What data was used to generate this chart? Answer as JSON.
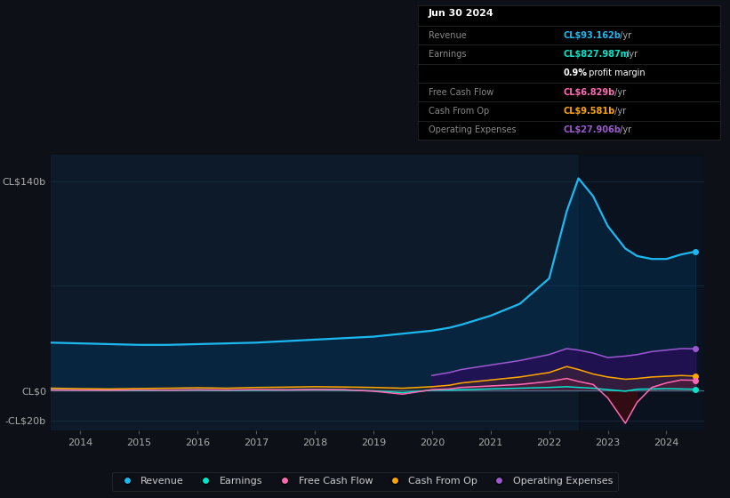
{
  "bg_color": "#0d1117",
  "plot_bg_color": "#0d1a2a",
  "title_date": "Jun 30 2024",
  "years": [
    2013.5,
    2014.0,
    2014.5,
    2015.0,
    2015.5,
    2016.0,
    2016.5,
    2017.0,
    2017.5,
    2018.0,
    2018.5,
    2019.0,
    2019.5,
    2020.0,
    2020.3,
    2020.5,
    2021.0,
    2021.5,
    2022.0,
    2022.3,
    2022.5,
    2022.75,
    2023.0,
    2023.3,
    2023.5,
    2023.75,
    2024.0,
    2024.25,
    2024.5
  ],
  "revenue": [
    32,
    31.5,
    31,
    30.5,
    30.5,
    31,
    31.5,
    32,
    33,
    34,
    35,
    36,
    38,
    40,
    42,
    44,
    50,
    58,
    75,
    120,
    142,
    130,
    110,
    95,
    90,
    88,
    88,
    91,
    93
  ],
  "earnings": [
    0.5,
    0.3,
    0.2,
    0.1,
    0.2,
    0.3,
    0.1,
    0.2,
    0.3,
    0.5,
    0.3,
    -0.3,
    -1.5,
    0.2,
    0.3,
    0.5,
    1.0,
    1.5,
    2.0,
    2.5,
    2.0,
    1.5,
    0.5,
    -0.5,
    0.8,
    1.0,
    1.2,
    1.0,
    0.83
  ],
  "free_cash_flow": [
    0.3,
    0.2,
    0.1,
    0.3,
    0.2,
    0.4,
    0.3,
    0.5,
    0.4,
    0.6,
    0.5,
    -0.5,
    -2.5,
    0.5,
    1.0,
    2.0,
    3.0,
    4.0,
    6.0,
    8.0,
    6.0,
    4.0,
    -5.0,
    -22.0,
    -8.0,
    2.0,
    5.0,
    7.0,
    6.8
  ],
  "cash_from_op": [
    1.5,
    1.2,
    1.0,
    1.3,
    1.5,
    1.8,
    1.5,
    2.0,
    2.2,
    2.5,
    2.3,
    2.0,
    1.5,
    2.5,
    3.5,
    5.0,
    7.0,
    9.0,
    12.0,
    16.0,
    14.0,
    11.0,
    9.0,
    7.5,
    8.0,
    9.0,
    9.5,
    10.0,
    9.6
  ],
  "op_expenses": [
    0,
    0,
    0,
    0,
    0,
    0,
    0,
    0,
    0,
    0,
    0,
    0,
    0,
    10,
    12,
    14,
    17,
    20,
    24,
    28,
    27,
    25,
    22,
    23,
    24,
    26,
    27,
    28,
    27.9
  ],
  "ylim": [
    -27,
    158
  ],
  "xlim": [
    2013.5,
    2024.65
  ],
  "ytick_vals": [
    -20,
    0,
    140
  ],
  "ytick_labels": [
    "-CL$20b",
    "CL$0",
    "CL$140b"
  ],
  "xtick_vals": [
    2014,
    2015,
    2016,
    2017,
    2018,
    2019,
    2020,
    2021,
    2022,
    2023,
    2024
  ],
  "revenue_color": "#1cb8f0",
  "earnings_color": "#00e5cc",
  "fcf_color": "#ff69b4",
  "cash_op_color": "#ffa500",
  "op_exp_color": "#9b59d0",
  "highlight_x_start": 2022.5,
  "highlight_x_end": 2024.65,
  "legend_items": [
    {
      "label": "Revenue",
      "color": "#1cb8f0"
    },
    {
      "label": "Earnings",
      "color": "#00e5cc"
    },
    {
      "label": "Free Cash Flow",
      "color": "#ff69b4"
    },
    {
      "label": "Cash From Op",
      "color": "#ffa500"
    },
    {
      "label": "Operating Expenses",
      "color": "#9b59d0"
    }
  ]
}
